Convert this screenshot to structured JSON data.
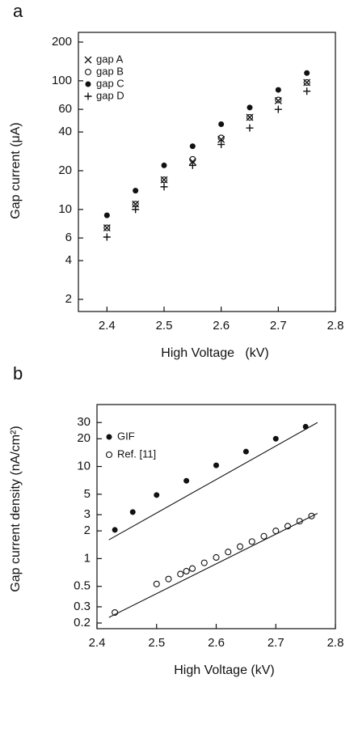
{
  "chart_data": [
    {
      "type": "scatter",
      "panel": "a",
      "xlabel": "High Voltage   (kV)",
      "ylabel": "Gap current (μA)",
      "log_y": true,
      "xlim": [
        2.35,
        2.8
      ],
      "ylim": [
        2,
        200
      ],
      "xticks": [
        2.4,
        2.5,
        2.6,
        2.7,
        2.8
      ],
      "yticks": [
        2,
        4,
        6,
        10,
        20,
        40,
        60,
        100,
        200
      ],
      "legend": "upper left",
      "series": [
        {
          "name": "gap A",
          "marker": "x",
          "color": "#111111",
          "x": [
            2.4,
            2.45,
            2.5,
            2.55,
            2.6,
            2.65,
            2.7,
            2.75
          ],
          "values": [
            7.2,
            11,
            17,
            23.5,
            35,
            52,
            70,
            97
          ]
        },
        {
          "name": "gap B",
          "marker": "open-circle",
          "color": "#111111",
          "x": [
            2.4,
            2.45,
            2.5,
            2.55,
            2.6,
            2.65,
            2.7,
            2.75
          ],
          "values": [
            7.2,
            11,
            17,
            24.5,
            36,
            52,
            71,
            97
          ]
        },
        {
          "name": "gap C",
          "marker": "filled-circle",
          "color": "#111111",
          "x": [
            2.4,
            2.45,
            2.5,
            2.55,
            2.6,
            2.65,
            2.7,
            2.75
          ],
          "values": [
            9,
            14,
            22,
            31,
            46,
            62,
            85,
            115
          ]
        },
        {
          "name": "gap D",
          "marker": "plus",
          "color": "#111111",
          "x": [
            2.4,
            2.45,
            2.5,
            2.55,
            2.6,
            2.65,
            2.7,
            2.75
          ],
          "values": [
            6.1,
            10,
            15,
            22,
            32,
            43,
            60,
            83
          ]
        }
      ]
    },
    {
      "type": "scatter",
      "panel": "b",
      "xlabel": "High Voltage (kV)",
      "ylabel": "Gap current density (nA/cm²)",
      "log_y": true,
      "xlim": [
        2.4,
        2.8
      ],
      "ylim": [
        0.2,
        40
      ],
      "xticks": [
        2.4,
        2.5,
        2.6,
        2.7,
        2.8
      ],
      "yticks": [
        0.2,
        0.3,
        0.5,
        1,
        2,
        3,
        5,
        10,
        20,
        30
      ],
      "legend": "upper left",
      "series": [
        {
          "name": "GIF",
          "marker": "filled-circle",
          "color": "#111111",
          "x": [
            2.43,
            2.46,
            2.5,
            2.55,
            2.6,
            2.65,
            2.7,
            2.75
          ],
          "values": [
            2.05,
            3.2,
            4.9,
            7,
            10.3,
            14.5,
            20,
            27
          ]
        },
        {
          "name": "Ref. [11]",
          "marker": "open-circle",
          "color": "#111111",
          "x": [
            2.43,
            2.5,
            2.52,
            2.54,
            2.55,
            2.56,
            2.58,
            2.6,
            2.62,
            2.64,
            2.66,
            2.68,
            2.7,
            2.72,
            2.74,
            2.76
          ],
          "values": [
            0.26,
            0.53,
            0.6,
            0.68,
            0.73,
            0.78,
            0.9,
            1.03,
            1.18,
            1.35,
            1.53,
            1.75,
            2.0,
            2.25,
            2.55,
            2.9
          ]
        }
      ],
      "fits": [
        {
          "x": [
            2.42,
            2.77
          ],
          "values": [
            1.6,
            30
          ]
        },
        {
          "x": [
            2.42,
            2.77
          ],
          "values": [
            0.23,
            3.1
          ]
        }
      ]
    }
  ]
}
